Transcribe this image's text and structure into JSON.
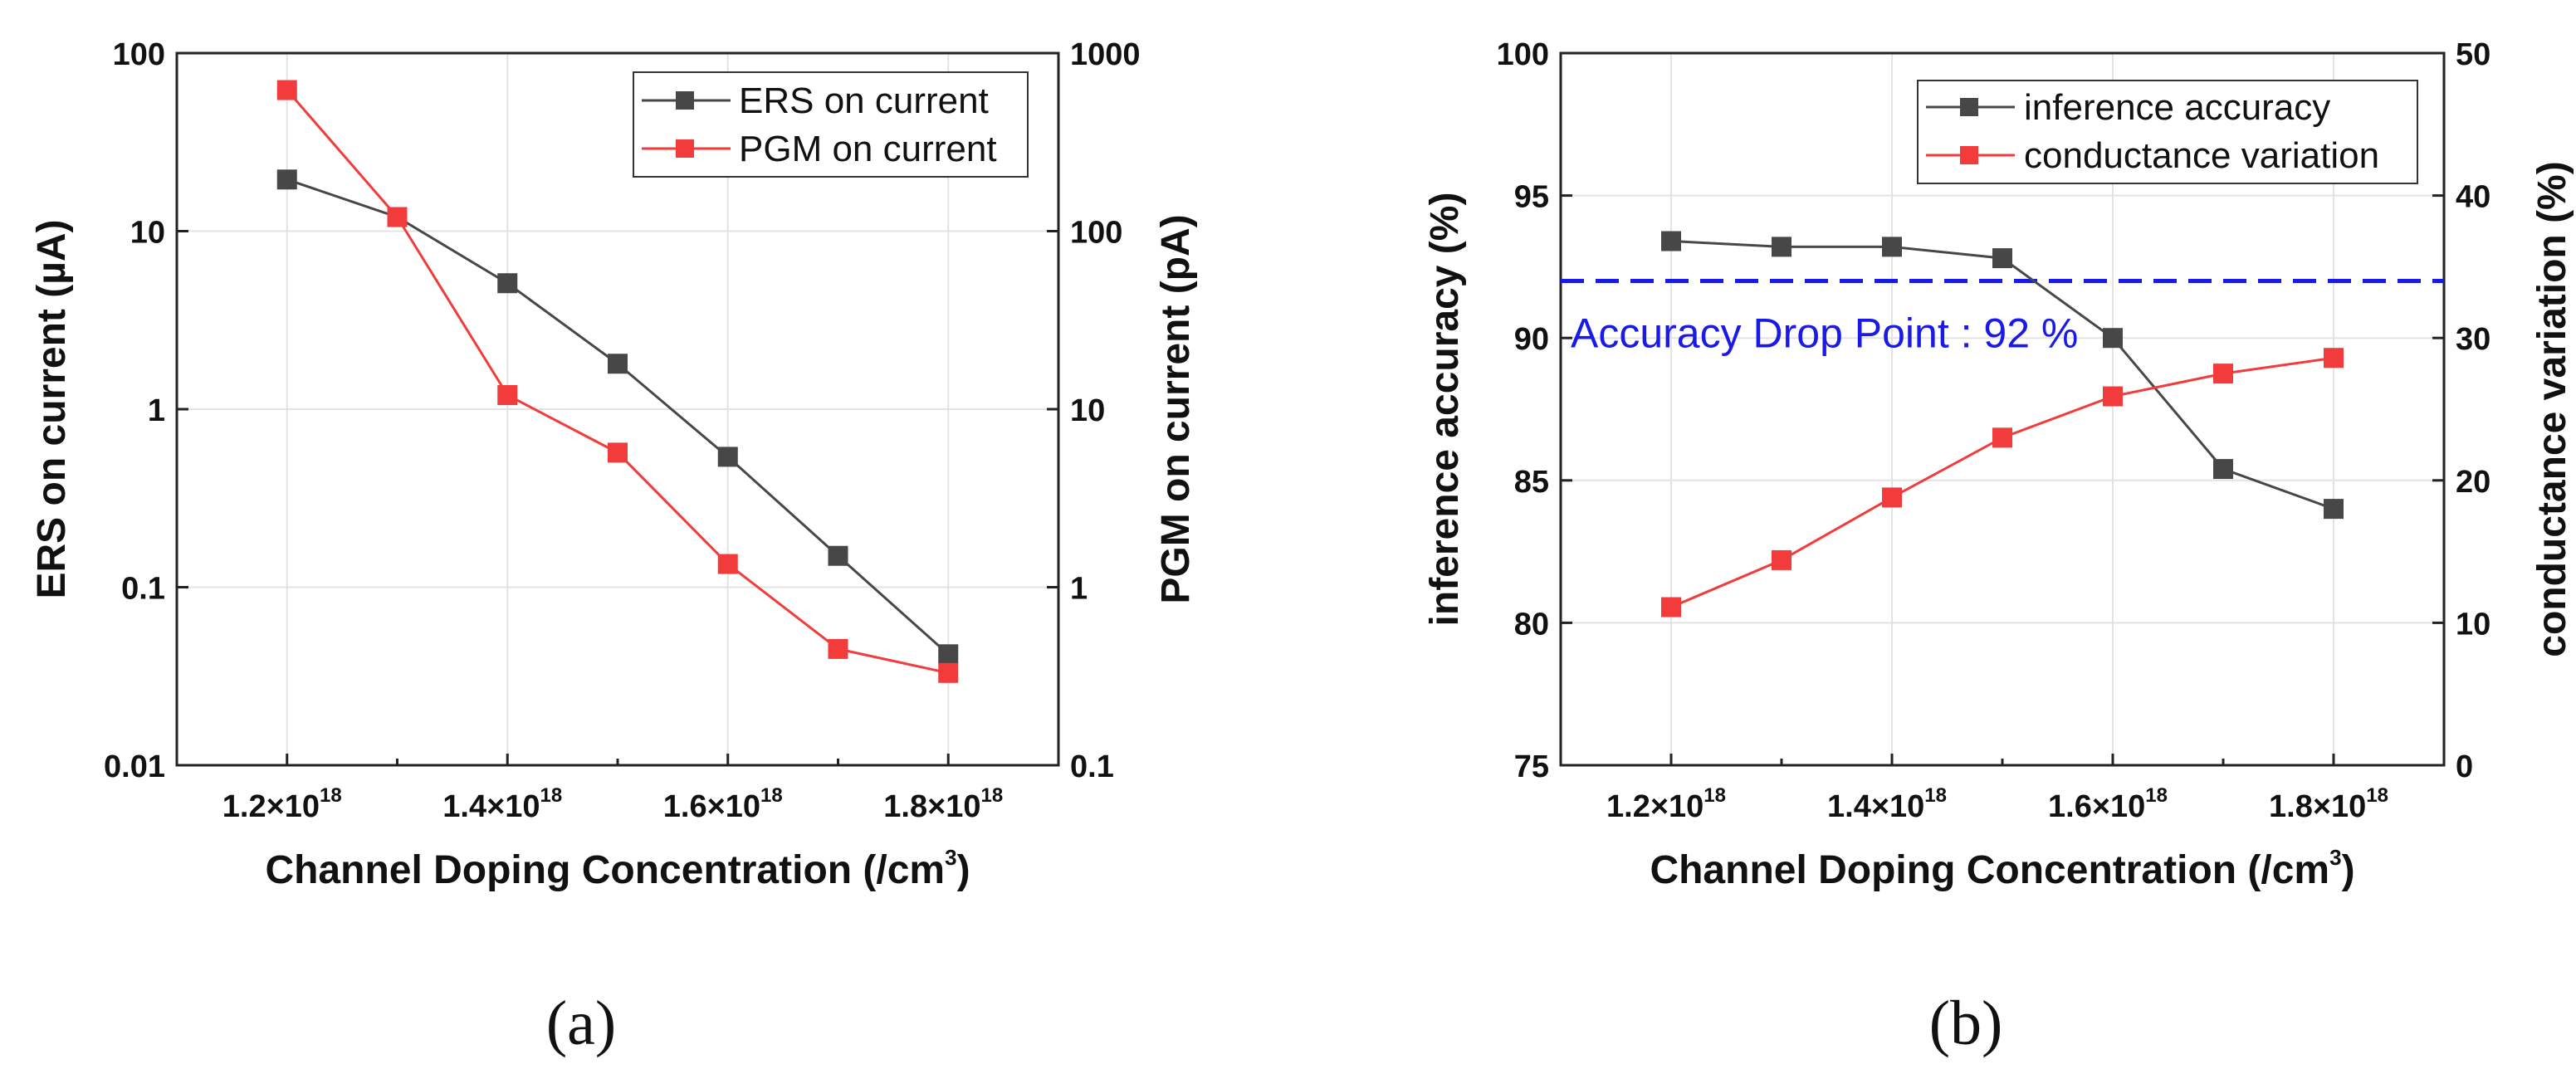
{
  "chart_data": [
    {
      "type": "line",
      "panel_label": "(a)",
      "xlabel": "Channel Doping Concentration (/cm",
      "xlabel_sup": "3",
      "xlabel_close": ")",
      "ylabel": "ERS on current (µA)",
      "y2label": "PGM on current (pA)",
      "x_ticks": [
        "1.2×10",
        "1.4×10",
        "1.6×10",
        "1.8×10"
      ],
      "x_tick_sup": "18",
      "y_ticks": [
        "0.01",
        "0.1",
        "1",
        "10",
        "100"
      ],
      "y2_ticks": [
        "0.1",
        "1",
        "10",
        "100",
        "1000"
      ],
      "xlim": [
        1.1,
        1.9
      ],
      "ylim": [
        0.01,
        100
      ],
      "y2lim": [
        0.1,
        1000
      ],
      "yscale": "log",
      "grid": true,
      "legend_position": "top-right",
      "x": [
        1.2,
        1.3,
        1.4,
        1.5,
        1.6,
        1.7,
        1.8
      ],
      "series": [
        {
          "name": "ERS on current",
          "axis": "left",
          "color": "#474747",
          "values": [
            19.5,
            12,
            5.1,
            1.8,
            0.54,
            0.15,
            0.042
          ]
        },
        {
          "name": "PGM on current",
          "axis": "right",
          "color": "#f23b3b",
          "values": [
            620,
            120,
            12,
            5.7,
            1.35,
            0.45,
            0.33
          ]
        }
      ]
    },
    {
      "type": "line",
      "panel_label": "(b)",
      "xlabel": "Channel Doping Concentration (/cm",
      "xlabel_sup": "3",
      "xlabel_close": ")",
      "ylabel": "inference accuracy (%)",
      "y2label": "conductance variation (%)",
      "x_ticks": [
        "1.2×10",
        "1.4×10",
        "1.6×10",
        "1.8×10"
      ],
      "x_tick_sup": "18",
      "y_ticks": [
        "75",
        "80",
        "85",
        "90",
        "95",
        "100"
      ],
      "y2_ticks": [
        "0",
        "10",
        "20",
        "30",
        "40",
        "50"
      ],
      "xlim": [
        1.1,
        1.9
      ],
      "ylim": [
        75,
        100
      ],
      "y2lim": [
        0,
        50
      ],
      "grid": true,
      "legend_position": "top-right",
      "x": [
        1.2,
        1.3,
        1.4,
        1.5,
        1.6,
        1.7,
        1.8
      ],
      "series": [
        {
          "name": "inference accuracy",
          "axis": "left",
          "color": "#474747",
          "values": [
            93.4,
            93.2,
            93.2,
            92.8,
            90.0,
            85.4,
            84.0
          ]
        },
        {
          "name": "conductance variation",
          "axis": "right",
          "color": "#f23b3b",
          "values": [
            11.1,
            14.4,
            18.8,
            23.0,
            25.9,
            27.5,
            28.6
          ]
        }
      ],
      "reference_line": {
        "y": 92,
        "color": "#1a1ae6",
        "label": "Accuracy Drop Point : 92 %"
      }
    }
  ]
}
